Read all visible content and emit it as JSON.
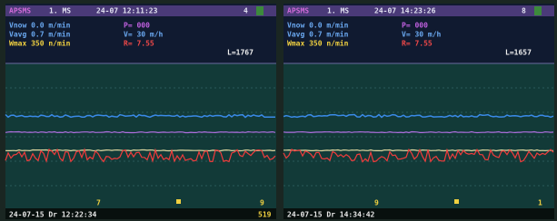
{
  "panels": [
    {
      "header": {
        "mode": "APSMS",
        "unit": "1. MS",
        "time": "24-07 12:11:23",
        "flag": "4"
      },
      "left_readings": [
        "Vnow 0.0 m/min",
        "Vavg 0.7 m/min",
        "Wmax 350 n/min"
      ],
      "mid_readings": [
        "P= 000",
        "V= 30 m/h",
        "R= 7.55"
      ],
      "length": "L=1767",
      "markers": [
        "7",
        "9"
      ],
      "footer": {
        "date": "24-07-15 Dr 12:22:34",
        "count": "519"
      }
    },
    {
      "header": {
        "mode": "APSMS",
        "unit": "1. MS",
        "time": "24-07 14:23:26",
        "flag": "8"
      },
      "left_readings": [
        "Vnow 0.0 m/min",
        "Vavg 0.7 m/min",
        "Wmax 350 n/min"
      ],
      "mid_readings": [
        "P= 000",
        "V= 30 m/h",
        "R= 7.55"
      ],
      "length": "L=1657",
      "markers": [
        "9",
        "1"
      ],
      "footer": {
        "date": "24-07-15 Dr 14:34:42",
        "count": ""
      }
    }
  ]
}
